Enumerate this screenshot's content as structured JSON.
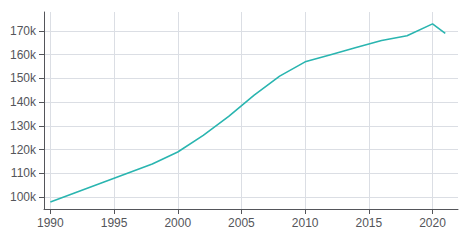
{
  "chart_data": {
    "type": "line",
    "x": [
      1990,
      1992,
      1994,
      1996,
      1998,
      2000,
      2002,
      2004,
      2006,
      2008,
      2010,
      2012,
      2014,
      2016,
      2018,
      2020,
      2021
    ],
    "values": [
      98000,
      102000,
      106000,
      110000,
      114000,
      119000,
      126000,
      134000,
      143000,
      151000,
      157000,
      160000,
      163000,
      166000,
      168000,
      173000,
      169000
    ],
    "color": "#2ab5b0",
    "xlim": [
      1989.5,
      2022
    ],
    "xticks": [
      1990,
      1995,
      2000,
      2005,
      2010,
      2015,
      2020
    ],
    "ylim": [
      95000,
      178000
    ],
    "yticks": [
      {
        "value": 100000,
        "label": "100k"
      },
      {
        "value": 110000,
        "label": "110k"
      },
      {
        "value": 120000,
        "label": "120k"
      },
      {
        "value": 130000,
        "label": "130k"
      },
      {
        "value": 140000,
        "label": "140k"
      },
      {
        "value": 150000,
        "label": "150k"
      },
      {
        "value": 160000,
        "label": "160k"
      },
      {
        "value": 170000,
        "label": "170k"
      }
    ],
    "grid": true
  }
}
